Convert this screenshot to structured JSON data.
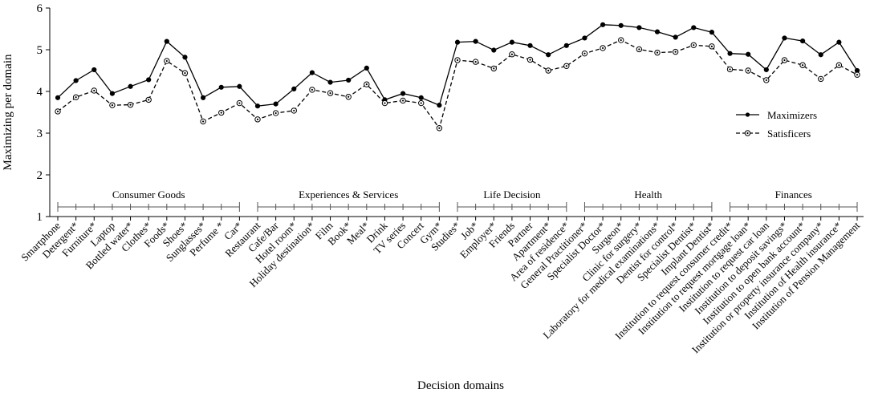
{
  "chart_data": {
    "type": "line",
    "ylabel": "Maximizing per domain",
    "xlabel": "Decision domains",
    "ylim": [
      1,
      6
    ],
    "yticks": [
      1,
      2,
      3,
      4,
      5,
      6
    ],
    "grid": false,
    "legend_position": "right",
    "categories": [
      "Smartphone",
      "Detergent*",
      "Furniture*",
      "Laptop",
      "Bottled water*",
      "Clothes*",
      "Foods*",
      "Shoes*",
      "Sunglasses*",
      "Perfume *",
      "Car*",
      "Restaurant",
      "Cafe/Bar",
      "Hotel room*",
      "Holiday destination*",
      "Film",
      "Book*",
      "Meal*",
      "Drink",
      "TV series",
      "Concert",
      "Gym*",
      "Studies*",
      "Job*",
      "Employer*",
      "Friends",
      "Partner",
      "Apartment*",
      "Area of residence*",
      "General Practitioner*",
      "Specialist Doctor*",
      "Surgeon*",
      "Clinic for surgery*",
      "Laboratory for medical examinations*",
      "Dentist for control*",
      "Specialist Dentist*",
      "Implant Dentist*",
      "Institution to request consumer credit*",
      "Institution to request mortgage loan*",
      "Institution to request car loan",
      "Institution to deposit savings*",
      "Institution to open bank account*",
      "Institution or property insurance company*",
      "Institution of Health insurance*",
      "Institution of Pension Management"
    ],
    "groups": [
      {
        "label": "Consumer Goods",
        "start": 0,
        "end": 10
      },
      {
        "label": "Experiences & Services",
        "start": 11,
        "end": 21
      },
      {
        "label": "Life Decision",
        "start": 22,
        "end": 28
      },
      {
        "label": "Health",
        "start": 29,
        "end": 36
      },
      {
        "label": "Finances",
        "start": 37,
        "end": 44
      }
    ],
    "series": [
      {
        "name": "Maximizers",
        "marker": "filled",
        "dash": "solid",
        "values": [
          3.85,
          4.26,
          4.52,
          3.95,
          4.12,
          4.28,
          5.2,
          4.82,
          3.85,
          4.1,
          4.12,
          3.65,
          3.7,
          4.06,
          4.45,
          4.22,
          4.27,
          4.56,
          3.8,
          3.95,
          3.85,
          3.67,
          5.18,
          5.2,
          4.99,
          5.18,
          5.1,
          4.88,
          5.1,
          5.28,
          5.6,
          5.58,
          5.53,
          5.43,
          5.3,
          5.53,
          5.42,
          4.91,
          4.89,
          4.52,
          5.28,
          5.21,
          4.88,
          5.18,
          4.5
        ]
      },
      {
        "name": "Satisficers",
        "marker": "open",
        "dash": "dashed",
        "values": [
          3.52,
          3.86,
          4.02,
          3.67,
          3.68,
          3.8,
          4.73,
          4.44,
          3.28,
          3.49,
          3.72,
          3.33,
          3.48,
          3.54,
          4.04,
          3.96,
          3.87,
          4.17,
          3.72,
          3.78,
          3.72,
          3.12,
          4.75,
          4.71,
          4.55,
          4.89,
          4.76,
          4.5,
          4.61,
          4.91,
          5.04,
          5.23,
          5.01,
          4.93,
          4.95,
          5.11,
          5.08,
          4.53,
          4.5,
          4.27,
          4.75,
          4.63,
          4.3,
          4.63,
          4.4
        ]
      }
    ]
  }
}
